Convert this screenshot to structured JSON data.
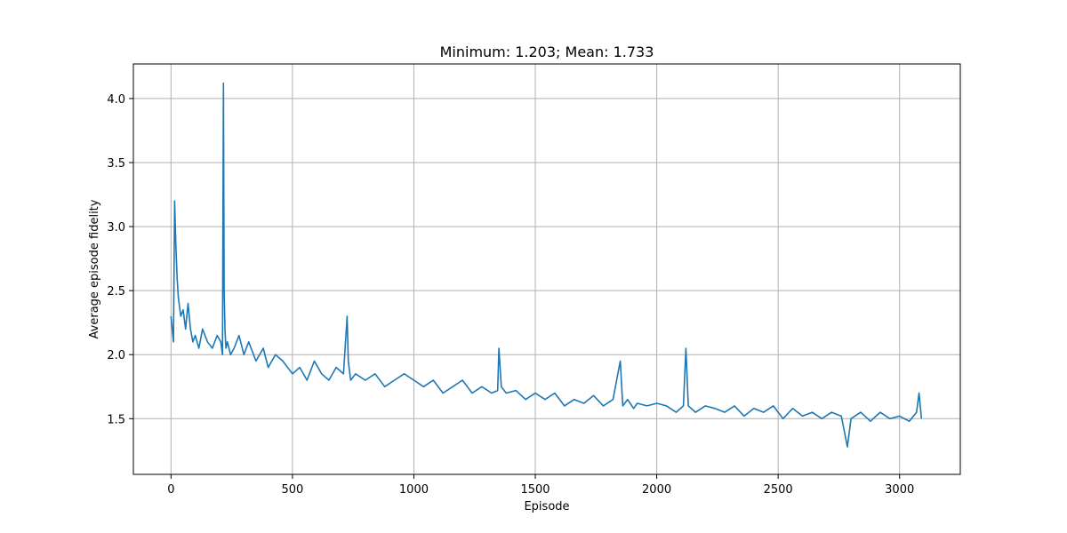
{
  "chart_data": {
    "type": "line",
    "title": "Minimum: 1.203; Mean: 1.733",
    "xlabel": "Episode",
    "ylabel": "Average episode fidelity",
    "xlim": [
      -155,
      3250
    ],
    "ylim": [
      1.065,
      4.27
    ],
    "xticks": [
      0,
      500,
      1000,
      1500,
      2000,
      2500,
      3000
    ],
    "yticks": [
      1.5,
      2.0,
      2.5,
      3.0,
      3.5,
      4.0
    ],
    "xtick_labels": [
      "0",
      "500",
      "1000",
      "1500",
      "2000",
      "2500",
      "3000"
    ],
    "ytick_labels": [
      "1.5",
      "2.0",
      "2.5",
      "3.0",
      "3.5",
      "4.0"
    ],
    "grid": true,
    "series": [
      {
        "color": "#1f77b4",
        "x": [
          0,
          10,
          15,
          20,
          25,
          30,
          40,
          50,
          60,
          70,
          80,
          90,
          100,
          115,
          130,
          150,
          170,
          190,
          205,
          212,
          216,
          219,
          222,
          226,
          232,
          245,
          260,
          280,
          300,
          320,
          350,
          380,
          400,
          430,
          460,
          500,
          530,
          560,
          590,
          620,
          650,
          680,
          710,
          725,
          730,
          740,
          760,
          800,
          840,
          880,
          920,
          960,
          1000,
          1040,
          1080,
          1120,
          1160,
          1200,
          1240,
          1280,
          1320,
          1345,
          1350,
          1360,
          1380,
          1420,
          1460,
          1500,
          1540,
          1580,
          1620,
          1660,
          1700,
          1740,
          1780,
          1820,
          1850,
          1860,
          1880,
          1905,
          1920,
          1960,
          2000,
          2040,
          2080,
          2110,
          2120,
          2130,
          2160,
          2200,
          2240,
          2280,
          2320,
          2360,
          2400,
          2440,
          2480,
          2520,
          2560,
          2600,
          2640,
          2680,
          2720,
          2760,
          2785,
          2800,
          2840,
          2880,
          2920,
          2960,
          3000,
          3040,
          3070,
          3080,
          3090
        ],
        "y": [
          2.3,
          2.1,
          3.2,
          2.85,
          2.6,
          2.45,
          2.3,
          2.35,
          2.2,
          2.4,
          2.2,
          2.1,
          2.15,
          2.05,
          2.2,
          2.1,
          2.05,
          2.15,
          2.1,
          2.0,
          4.12,
          2.5,
          2.2,
          2.05,
          2.1,
          2.0,
          2.05,
          2.15,
          2.0,
          2.1,
          1.95,
          2.05,
          1.9,
          2.0,
          1.95,
          1.85,
          1.9,
          1.8,
          1.95,
          1.85,
          1.8,
          1.9,
          1.85,
          2.3,
          1.95,
          1.8,
          1.85,
          1.8,
          1.85,
          1.75,
          1.8,
          1.85,
          1.8,
          1.75,
          1.8,
          1.7,
          1.75,
          1.8,
          1.7,
          1.75,
          1.7,
          1.72,
          2.05,
          1.75,
          1.7,
          1.72,
          1.65,
          1.7,
          1.65,
          1.7,
          1.6,
          1.65,
          1.62,
          1.68,
          1.6,
          1.65,
          1.95,
          1.6,
          1.65,
          1.58,
          1.62,
          1.6,
          1.62,
          1.6,
          1.55,
          1.6,
          2.05,
          1.6,
          1.55,
          1.6,
          1.58,
          1.55,
          1.6,
          1.52,
          1.58,
          1.55,
          1.6,
          1.5,
          1.58,
          1.52,
          1.55,
          1.5,
          1.55,
          1.52,
          1.28,
          1.5,
          1.55,
          1.48,
          1.55,
          1.5,
          1.52,
          1.48,
          1.55,
          1.7,
          1.5
        ]
      }
    ]
  }
}
